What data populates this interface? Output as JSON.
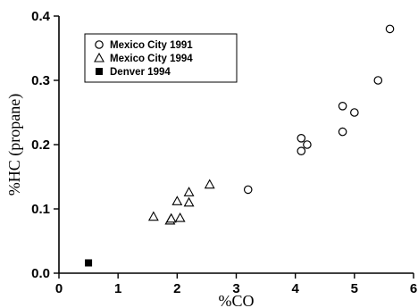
{
  "chart_data": {
    "type": "scatter",
    "xlabel": "%CO",
    "ylabel": "%HC (propane)",
    "xlim": [
      0,
      6
    ],
    "ylim": [
      0,
      0.4
    ],
    "x_ticks": [
      0,
      1,
      2,
      3,
      4,
      5,
      6
    ],
    "y_ticks": [
      0.0,
      0.1,
      0.2,
      0.3,
      0.4
    ],
    "x_tick_labels": [
      "0",
      "1",
      "2",
      "3",
      "4",
      "5",
      "6"
    ],
    "y_tick_labels": [
      "0.0",
      "0.1",
      "0.2",
      "0.3",
      "0.4"
    ],
    "grid": false,
    "legend_position": "top-left",
    "series": [
      {
        "name": "Mexico City 1991",
        "marker": "open-circle",
        "color": "#000000",
        "points": [
          {
            "x": 3.2,
            "y": 0.13
          },
          {
            "x": 4.1,
            "y": 0.19
          },
          {
            "x": 4.1,
            "y": 0.21
          },
          {
            "x": 4.2,
            "y": 0.2
          },
          {
            "x": 4.8,
            "y": 0.22
          },
          {
            "x": 4.8,
            "y": 0.26
          },
          {
            "x": 5.0,
            "y": 0.25
          },
          {
            "x": 5.4,
            "y": 0.3
          },
          {
            "x": 5.6,
            "y": 0.38
          }
        ]
      },
      {
        "name": "Mexico City 1994",
        "marker": "open-triangle",
        "color": "#000000",
        "points": [
          {
            "x": 1.6,
            "y": 0.088
          },
          {
            "x": 1.88,
            "y": 0.082
          },
          {
            "x": 1.9,
            "y": 0.085
          },
          {
            "x": 2.0,
            "y": 0.112
          },
          {
            "x": 2.05,
            "y": 0.086
          },
          {
            "x": 2.2,
            "y": 0.126
          },
          {
            "x": 2.2,
            "y": 0.11
          },
          {
            "x": 2.55,
            "y": 0.138
          }
        ]
      },
      {
        "name": "Denver 1994",
        "marker": "filled-square",
        "color": "#000000",
        "points": [
          {
            "x": 0.5,
            "y": 0.016
          }
        ]
      }
    ]
  }
}
